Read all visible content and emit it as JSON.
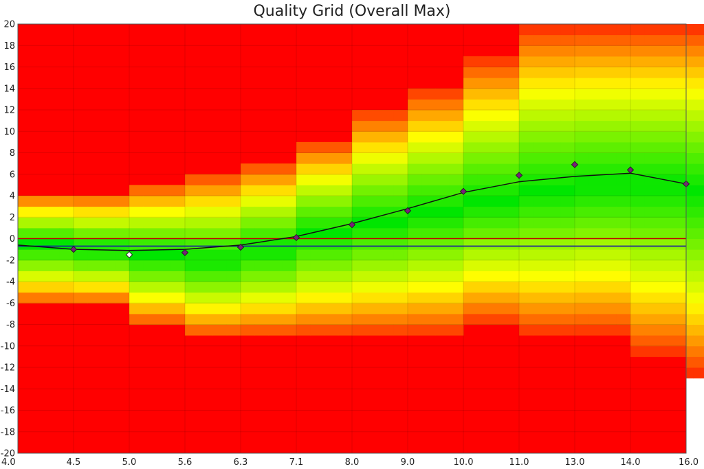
{
  "chart_data": {
    "type": "heatmap",
    "title": "Quality Grid (Overall Max)",
    "xlabel": "",
    "ylabel": "",
    "x_ticks": [
      "4.0",
      "4.5",
      "5.0",
      "5.6",
      "6.3",
      "7.1",
      "8.0",
      "9.0",
      "10.0",
      "11.0",
      "13.0",
      "14.0",
      "16.0"
    ],
    "y_ticks": [
      "20",
      "18",
      "16",
      "14",
      "12",
      "10",
      "8",
      "6",
      "4",
      "2",
      "0",
      "-2",
      "-4",
      "-6",
      "-8",
      "-10",
      "-12",
      "-14",
      "-16",
      "-18",
      "-20"
    ],
    "ylim": [
      -20,
      20
    ],
    "grid": true,
    "colors": {
      "bad": "#ff0000",
      "mid": "#ffff00",
      "good": "#00e600"
    },
    "heatmap": {
      "columns": [
        {
          "x_from": 0,
          "x_to": 1,
          "high": 4.5,
          "best": -0.5,
          "low": -6.5
        },
        {
          "x_from": 1,
          "x_to": 2,
          "high": 4.5,
          "best": -1.0,
          "low": -6.5
        },
        {
          "x_from": 2,
          "x_to": 3,
          "high": 5.5,
          "best": -1.5,
          "low": -8.5
        },
        {
          "x_from": 3,
          "x_to": 4,
          "high": 6.5,
          "best": -2.0,
          "low": -9.5
        },
        {
          "x_from": 4,
          "x_to": 5,
          "high": 7.5,
          "best": -1.0,
          "low": -9.5
        },
        {
          "x_from": 5,
          "x_to": 6,
          "high": 9.5,
          "best": 0.5,
          "low": -9.5
        },
        {
          "x_from": 6,
          "x_to": 7,
          "high": 12.5,
          "best": 1.5,
          "low": -9.5
        },
        {
          "x_from": 7,
          "x_to": 8,
          "high": 14.5,
          "best": 2.5,
          "low": -9.5
        },
        {
          "x_from": 8,
          "x_to": 9,
          "high": 17.5,
          "best": 3.5,
          "low": -8.5
        },
        {
          "x_from": 9,
          "x_to": 10,
          "high": 20.5,
          "best": 4.5,
          "low": -9.5
        },
        {
          "x_from": 10,
          "x_to": 11,
          "high": 20.5,
          "best": 5.0,
          "low": -9.5
        },
        {
          "x_from": 11,
          "x_to": 12,
          "high": 20.5,
          "best": 5.0,
          "low": -11.5
        },
        {
          "x_from": 12,
          "x_to": 12.5,
          "high": 20.5,
          "best": 4.5,
          "low": -13.5
        }
      ]
    },
    "series": [
      {
        "type": "scatter",
        "x": [
          4.5,
          5.0,
          5.6,
          6.3,
          7.1,
          8.0,
          9.0,
          10.0,
          11.0,
          13.0,
          14.0,
          16.0
        ],
        "y": [
          -1.0,
          -1.5,
          -1.3,
          -0.8,
          0.1,
          1.3,
          2.6,
          4.4,
          5.9,
          6.9,
          6.4,
          5.1
        ],
        "highlight_index": 1
      },
      {
        "type": "line",
        "x": [
          4.0,
          4.5,
          5.0,
          5.6,
          6.3,
          7.1,
          8.0,
          9.0,
          10.0,
          11.0,
          13.0,
          14.0,
          16.0
        ],
        "y": [
          -0.6,
          -1.0,
          -1.1,
          -1.0,
          -0.6,
          0.2,
          1.4,
          2.8,
          4.3,
          5.3,
          5.8,
          6.1,
          5.1
        ]
      },
      {
        "type": "hline",
        "y": 0.0,
        "color": "#c00000"
      },
      {
        "type": "hline",
        "y": -0.7,
        "color": "#1a1aa0"
      }
    ]
  }
}
